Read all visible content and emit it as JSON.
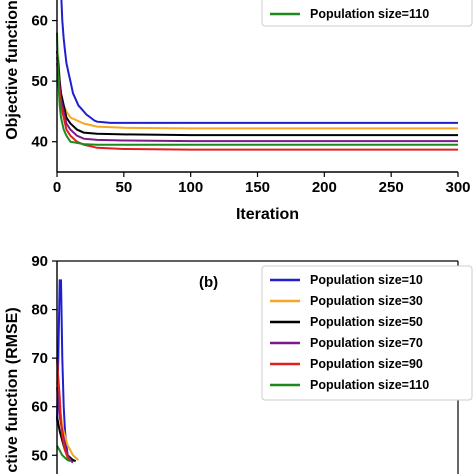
{
  "chart_data": [
    {
      "type": "line",
      "panel_label": "",
      "xlabel": "Iteration",
      "ylabel": "Objective function",
      "xlim": [
        0,
        300
      ],
      "ylim": [
        35,
        70
      ],
      "xticks": [
        "0",
        "50",
        "100",
        "150",
        "200",
        "250",
        "300"
      ],
      "yticks": [
        "40",
        "50",
        "60"
      ],
      "legend_position": "top-right",
      "series": [
        {
          "name": "Population size=10",
          "color": "#1f1fd0",
          "x": [
            0,
            2,
            3,
            4,
            5,
            6,
            7,
            8,
            9,
            10,
            11,
            12,
            14,
            16,
            18,
            20,
            22,
            25,
            28,
            30,
            35,
            40,
            45,
            50,
            60,
            80,
            100,
            150,
            200,
            250,
            300
          ],
          "y": [
            65,
            65,
            65,
            60,
            57,
            55,
            53,
            52,
            51,
            50,
            49,
            48,
            47,
            46,
            45.5,
            45,
            44.5,
            44,
            43.5,
            43.3,
            43.2,
            43.1,
            43.1,
            43.1,
            43.1,
            43.1,
            43.1,
            43.1,
            43.1,
            43.1,
            43.1
          ]
        },
        {
          "name": "Population size=30",
          "color": "#f5a623",
          "x": [
            0,
            1,
            2,
            3,
            5,
            7,
            10,
            15,
            20,
            30,
            50,
            100,
            150,
            200,
            250,
            300
          ],
          "y": [
            55,
            54,
            50,
            48,
            46,
            45,
            44,
            43.5,
            43,
            42.5,
            42.3,
            42.2,
            42.2,
            42.2,
            42.2,
            42.2
          ]
        },
        {
          "name": "Population size=50",
          "color": "#000000",
          "x": [
            0,
            1,
            2,
            3,
            5,
            7,
            10,
            15,
            20,
            30,
            50,
            100,
            150,
            200,
            250,
            300
          ],
          "y": [
            55,
            53,
            50,
            48,
            46,
            44,
            43,
            42,
            41.5,
            41.3,
            41.2,
            41.1,
            41.1,
            41.1,
            41.1,
            41.1
          ]
        },
        {
          "name": "Population size=70",
          "color": "#7a1a8a",
          "x": [
            0,
            1,
            2,
            3,
            5,
            7,
            10,
            15,
            20,
            30,
            50,
            100,
            150,
            200,
            250,
            300
          ],
          "y": [
            54,
            52,
            49,
            47,
            45,
            43,
            42,
            41,
            40.5,
            40.3,
            40.2,
            40.1,
            40.1,
            40.1,
            40.1,
            40.1
          ]
        },
        {
          "name": "Population size=90",
          "color": "#e02020",
          "x": [
            0,
            1,
            2,
            3,
            5,
            7,
            10,
            15,
            20,
            30,
            50,
            100,
            150,
            200,
            250,
            300
          ],
          "y": [
            53,
            51,
            48,
            46,
            44,
            42,
            41,
            40,
            39.5,
            39,
            38.8,
            38.7,
            38.7,
            38.7,
            38.7,
            38.7
          ]
        },
        {
          "name": "Population size=110",
          "color": "#1e8a1e",
          "x": [
            0,
            1,
            2,
            3,
            5,
            7,
            10,
            15,
            20,
            30,
            50,
            100,
            150,
            200,
            250,
            300
          ],
          "y": [
            58,
            50,
            46,
            44,
            42,
            41,
            40,
            39.8,
            39.6,
            39.5,
            39.5,
            39.5,
            39.5,
            39.5,
            39.5,
            39.5
          ]
        }
      ],
      "legend_visible": [
        "Population size=110"
      ]
    },
    {
      "type": "line",
      "panel_label": "(b)",
      "ylabel": "ctive function (RMSE)",
      "xlim": [
        0,
        300
      ],
      "ylim": [
        48,
        90
      ],
      "yticks": [
        "50",
        "60",
        "70",
        "80",
        "90"
      ],
      "legend_position": "top-right",
      "series": [
        {
          "name": "Population size=10",
          "color": "#1f1fd0",
          "x": [
            0,
            1,
            2,
            2.5,
            3,
            4,
            5,
            6,
            7,
            8
          ],
          "y": [
            57,
            70,
            86,
            86,
            86,
            70,
            60,
            55,
            52,
            50
          ]
        },
        {
          "name": "Population size=30",
          "color": "#f5a623",
          "x": [
            0,
            2,
            4,
            6,
            8,
            10,
            12,
            14,
            16
          ],
          "y": [
            65,
            60,
            56,
            54,
            52,
            51,
            50,
            49.5,
            49
          ]
        },
        {
          "name": "Population size=50",
          "color": "#000000",
          "x": [
            0,
            2,
            4,
            6,
            8,
            10,
            12,
            14
          ],
          "y": [
            58,
            55,
            53,
            51,
            50,
            49.5,
            49,
            48.8
          ]
        },
        {
          "name": "Population size=70",
          "color": "#7a1a8a",
          "x": [
            0,
            2,
            4,
            6,
            8,
            10,
            12
          ],
          "y": [
            64,
            58,
            55,
            52,
            50,
            49,
            48.5
          ]
        },
        {
          "name": "Population size=90",
          "color": "#e02020",
          "x": [
            0,
            1,
            2,
            3,
            4,
            6,
            8,
            10
          ],
          "y": [
            70,
            66,
            62,
            57,
            54,
            51,
            49.5,
            49
          ]
        },
        {
          "name": "Population size=110",
          "color": "#1e8a1e",
          "x": [
            0,
            2,
            4,
            6,
            8,
            10
          ],
          "y": [
            52,
            51,
            50,
            49.5,
            49,
            48.8
          ]
        }
      ]
    }
  ]
}
